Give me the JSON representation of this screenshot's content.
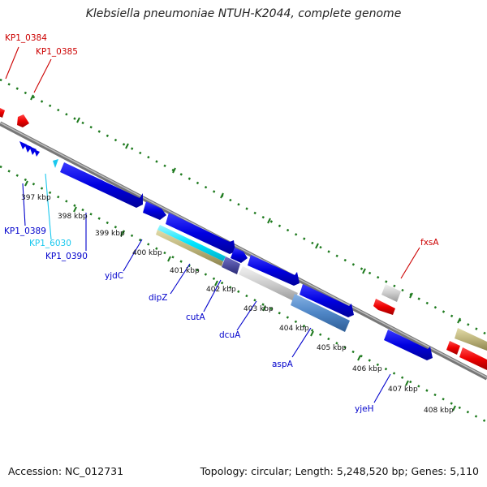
{
  "title": "Klebsiella pneumoniae NTUH-K2044, complete genome",
  "footer": {
    "accession": "Accession: NC_012731",
    "topology": "Topology: circular; Length: 5,248,520 bp; Genes: 5,110"
  },
  "kbp_labels": [
    "397 kbp",
    "398 kbp",
    "399 kbp",
    "400 kbp",
    "401 kbp",
    "402 kbp",
    "403 kbp",
    "404 kbp",
    "405 kbp",
    "406 kbp",
    "407 kbp",
    "408 kbp"
  ],
  "gene_labels": [
    "KP1_0384",
    "KP1_0385",
    "KP1_0389",
    "KP1_6030",
    "KP1_0390",
    "yjdC",
    "dipZ",
    "cutA",
    "dcuA",
    "aspA",
    "yjeH",
    "fxsA"
  ],
  "colors": {
    "backbone": "#888888",
    "tick": "#1e7a1e",
    "cds_forward": "#0000e6",
    "cds_reverse": "#ee0000",
    "cds_light": "#00e5ff",
    "rna": "#c9c9c9",
    "khaki": "#bdb47c",
    "steel": "#4f86c6",
    "label_blue": "#0000cc",
    "label_red": "#cc0000",
    "label_cyan": "#19c8ee"
  }
}
